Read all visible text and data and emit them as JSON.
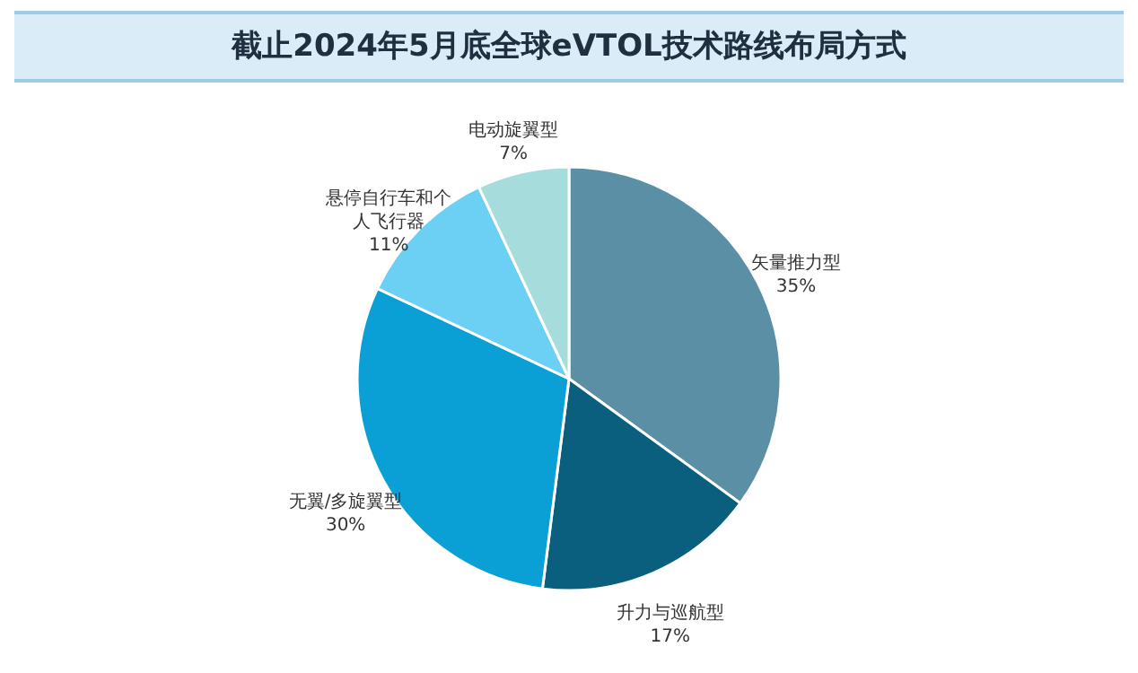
{
  "chart_data": {
    "type": "pie",
    "title": "截止2024年5月底全球eVTOL技术路线布局方式",
    "categories": [
      "矢量推力型",
      "升力与巡航型",
      "无翼/多旋翼型",
      "悬停自行车和个人飞行器",
      "电动旋翼型"
    ],
    "values": [
      35,
      17,
      30,
      11,
      7
    ],
    "colors": [
      "#5b8fa6",
      "#0b5f7e",
      "#0aa0d6",
      "#6ccff4",
      "#a6dcdb"
    ],
    "value_labels": [
      "35%",
      "17%",
      "30%",
      "11%",
      "7%"
    ]
  }
}
